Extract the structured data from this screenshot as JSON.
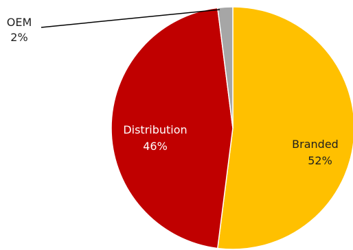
{
  "chart_data": {
    "type": "pie",
    "slices": [
      {
        "label": "Branded",
        "value": 52,
        "display": "52%",
        "color": "#FFC000",
        "label_color": "#1F1F1F"
      },
      {
        "label": "Distribution",
        "value": 46,
        "display": "46%",
        "color": "#C00000",
        "label_color": "#FFFFFF"
      },
      {
        "label": "OEM",
        "value": 2,
        "display": "2%",
        "color": "#A6A6A6",
        "label_color": "#1F1F1F"
      }
    ],
    "start_angle_deg": 0,
    "direction": "clockwise",
    "legend": "none",
    "labels": "data labels with category name and percentage"
  }
}
